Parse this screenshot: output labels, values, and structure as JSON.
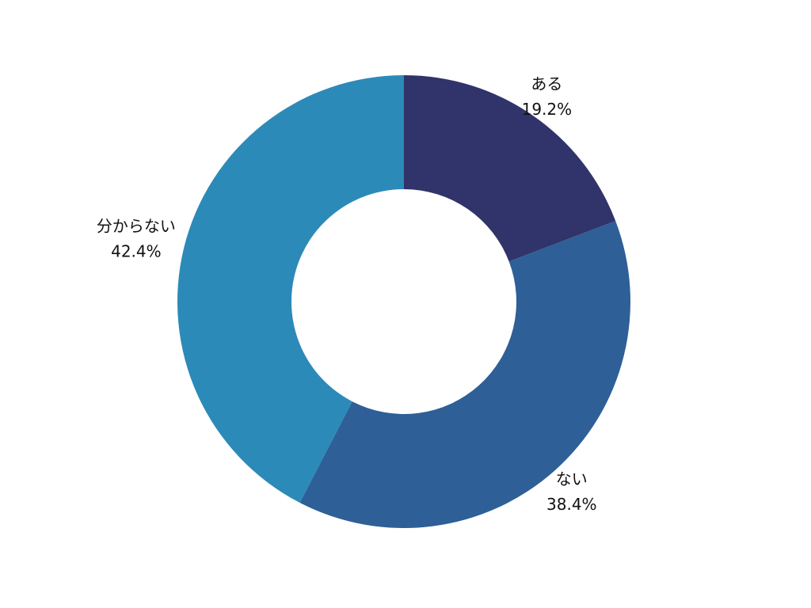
{
  "chart_data": {
    "type": "pie",
    "variant": "donut",
    "title": "",
    "slices": [
      {
        "label": "ある",
        "value": 19.2,
        "value_text": "19.2%",
        "color": "#31346a"
      },
      {
        "label": "ない",
        "value": 38.4,
        "value_text": "38.4%",
        "color": "#2e5f97"
      },
      {
        "label": "分からない",
        "value": 42.4,
        "value_text": "42.4%",
        "color": "#2c8ab8"
      }
    ],
    "start_angle": "12 o'clock",
    "direction": "clockwise",
    "labels_position": "outside"
  }
}
